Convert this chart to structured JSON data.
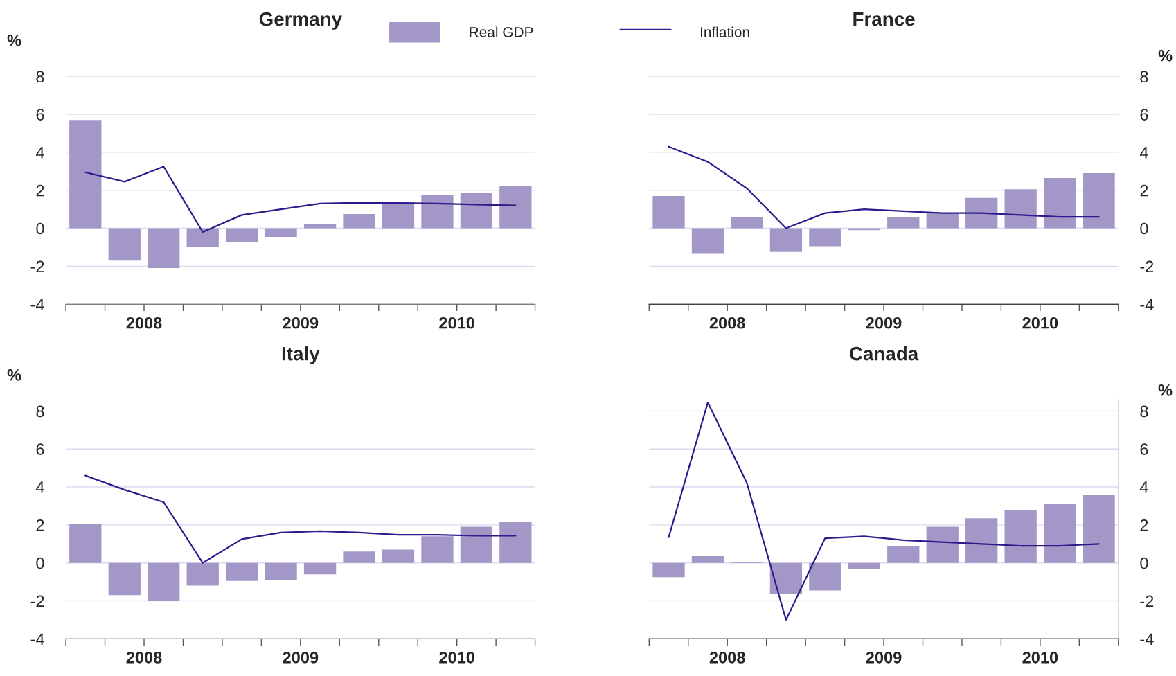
{
  "chart_data": [
    {
      "type": "bar",
      "title": "Germany",
      "ylabel": "%",
      "x": [
        2008.125,
        2008.375,
        2008.625,
        2008.875,
        2009.125,
        2009.375,
        2009.625,
        2009.875,
        2010.125,
        2010.375,
        2010.625,
        2010.875
      ],
      "xlim": [
        2008,
        2011
      ],
      "xticks": [
        {
          "value": 2008,
          "label": null
        },
        {
          "value": 2008.25,
          "label": null
        },
        {
          "value": 2008.5,
          "label": "2008"
        },
        {
          "value": 2008.75,
          "label": null
        },
        {
          "value": 2009,
          "label": null
        },
        {
          "value": 2009.25,
          "label": null
        },
        {
          "value": 2009.5,
          "label": "2009"
        },
        {
          "value": 2009.75,
          "label": null
        },
        {
          "value": 2010,
          "label": null
        },
        {
          "value": 2010.25,
          "label": null
        },
        {
          "value": 2010.5,
          "label": "2010"
        },
        {
          "value": 2010.75,
          "label": null
        },
        {
          "value": 2011,
          "label": null
        }
      ],
      "ylim": [
        -4,
        8
      ],
      "yticks": [
        -4,
        -2,
        0,
        2,
        4,
        6,
        8
      ],
      "grid": "y",
      "legend": "top",
      "series": [
        {
          "name": "Real GDP",
          "color": "#a397c8",
          "values": [
            5.7,
            -1.7,
            -2.1,
            -1.0,
            -0.75,
            -0.45,
            0.2,
            0.75,
            1.4,
            1.75,
            1.85,
            2.25
          ]
        },
        {
          "name": "Inflation",
          "type": "line",
          "color": "#2e1a8c",
          "values": [
            2.95,
            2.45,
            3.25,
            -0.2,
            0.7,
            1.0,
            1.3,
            1.35,
            1.33,
            1.3,
            1.25,
            1.2
          ]
        }
      ]
    },
    {
      "type": "bar",
      "title": "France",
      "y2label": "%",
      "x": [
        2008.125,
        2008.375,
        2008.625,
        2008.875,
        2009.125,
        2009.375,
        2009.625,
        2009.875,
        2010.125,
        2010.375,
        2010.625,
        2010.875
      ],
      "xlim": [
        2008,
        2011
      ],
      "xticks": [
        {
          "value": 2008,
          "label": null
        },
        {
          "value": 2008.25,
          "label": null
        },
        {
          "value": 2008.5,
          "label": "2008"
        },
        {
          "value": 2008.75,
          "label": null
        },
        {
          "value": 2009,
          "label": null
        },
        {
          "value": 2009.25,
          "label": null
        },
        {
          "value": 2009.5,
          "label": "2009"
        },
        {
          "value": 2009.75,
          "label": null
        },
        {
          "value": 2010,
          "label": null
        },
        {
          "value": 2010.25,
          "label": null
        },
        {
          "value": 2010.5,
          "label": "2010"
        },
        {
          "value": 2010.75,
          "label": null
        },
        {
          "value": 2011,
          "label": null
        }
      ],
      "y2lim": [
        -4,
        8
      ],
      "y2ticks": [
        -4,
        -2,
        0,
        2,
        4,
        6,
        8
      ],
      "grid": "y",
      "series": [
        {
          "axis": "y2",
          "color": "#a397c8",
          "values": [
            1.7,
            -1.35,
            0.6,
            -1.25,
            -0.95,
            -0.1,
            0.6,
            0.8,
            1.6,
            2.05,
            2.65,
            2.9
          ]
        },
        {
          "type": "line",
          "axis": "y2",
          "color": "#2e1a8c",
          "values": [
            4.3,
            3.5,
            2.1,
            0.0,
            0.8,
            1.0,
            0.9,
            0.8,
            0.8,
            0.7,
            0.6,
            0.6
          ]
        }
      ]
    },
    {
      "type": "bar",
      "title": "Italy",
      "ylabel": "%",
      "x": [
        2008.125,
        2008.375,
        2008.625,
        2008.875,
        2009.125,
        2009.375,
        2009.625,
        2009.875,
        2010.125,
        2010.375,
        2010.625,
        2010.875
      ],
      "xlim": [
        2008,
        2011
      ],
      "xticks": [
        {
          "value": 2008,
          "label": null
        },
        {
          "value": 2008.25,
          "label": null
        },
        {
          "value": 2008.5,
          "label": "2008"
        },
        {
          "value": 2008.75,
          "label": null
        },
        {
          "value": 2009,
          "label": null
        },
        {
          "value": 2009.25,
          "label": null
        },
        {
          "value": 2009.5,
          "label": "2009"
        },
        {
          "value": 2009.75,
          "label": null
        },
        {
          "value": 2010,
          "label": null
        },
        {
          "value": 2010.25,
          "label": null
        },
        {
          "value": 2010.5,
          "label": "2010"
        },
        {
          "value": 2010.75,
          "label": null
        },
        {
          "value": 2011,
          "label": null
        }
      ],
      "ylim": [
        -4,
        8
      ],
      "yticks": [
        -4,
        -2,
        0,
        2,
        4,
        6,
        8
      ],
      "grid": "y",
      "series": [
        {
          "color": "#a397c8",
          "values": [
            2.05,
            -1.7,
            -2.0,
            -1.2,
            -0.95,
            -0.9,
            -0.6,
            0.6,
            0.7,
            1.4,
            1.9,
            2.15
          ]
        },
        {
          "type": "line",
          "color": "#2e1a8c",
          "values": [
            4.6,
            3.85,
            3.2,
            0.0,
            1.25,
            1.6,
            1.67,
            1.6,
            1.48,
            1.48,
            1.43,
            1.43
          ]
        }
      ]
    },
    {
      "type": "bar",
      "title": "Canada",
      "y2label": "%",
      "x": [
        2008.125,
        2008.375,
        2008.625,
        2008.875,
        2009.125,
        2009.375,
        2009.625,
        2009.875,
        2010.125,
        2010.375,
        2010.625,
        2010.875
      ],
      "xlim": [
        2008,
        2011
      ],
      "xticks": [
        {
          "value": 2008,
          "label": null
        },
        {
          "value": 2008.25,
          "label": null
        },
        {
          "value": 2008.5,
          "label": "2008"
        },
        {
          "value": 2008.75,
          "label": null
        },
        {
          "value": 2009,
          "label": null
        },
        {
          "value": 2009.25,
          "label": null
        },
        {
          "value": 2009.5,
          "label": "2009"
        },
        {
          "value": 2009.75,
          "label": null
        },
        {
          "value": 2010,
          "label": null
        },
        {
          "value": 2010.25,
          "label": null
        },
        {
          "value": 2010.5,
          "label": "2010"
        },
        {
          "value": 2010.75,
          "label": null
        },
        {
          "value": 2011,
          "label": null
        }
      ],
      "y2lim": [
        -4,
        8.6
      ],
      "y2ticks": [
        -4,
        -2,
        0,
        2,
        4,
        6,
        8
      ],
      "grid": "y",
      "series": [
        {
          "axis": "y2",
          "color": "#a397c8",
          "values": [
            -0.75,
            0.35,
            0.05,
            -1.65,
            -1.45,
            -0.3,
            0.9,
            1.9,
            2.35,
            2.8,
            3.1,
            3.6
          ]
        },
        {
          "type": "line",
          "axis": "y2",
          "color": "#2e1a8c",
          "values": [
            1.35,
            8.45,
            4.2,
            -3.0,
            1.3,
            1.4,
            1.2,
            1.1,
            1.0,
            0.9,
            0.9,
            1.0
          ]
        }
      ]
    }
  ]
}
